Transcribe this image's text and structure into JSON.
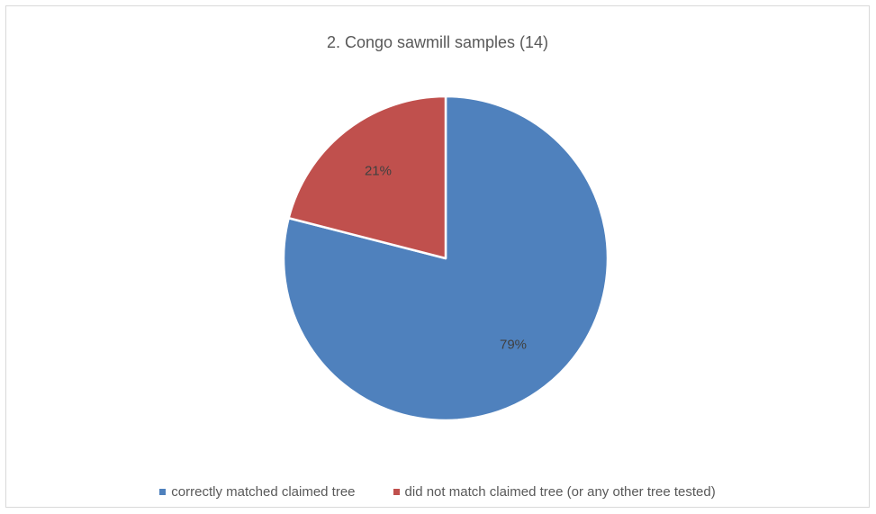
{
  "chart_data": {
    "type": "pie",
    "title": "2. Congo sawmill samples (14)",
    "slices": [
      {
        "label": "correctly matched claimed tree",
        "value": 79,
        "value_label": "79%",
        "color": "#4f81bd"
      },
      {
        "label": "did not match claimed tree (or any other tree tested)",
        "value": 21,
        "value_label": "21%",
        "color": "#c0504d"
      }
    ],
    "start_angle": "12 o'clock, clockwise",
    "legend_position": "bottom"
  }
}
